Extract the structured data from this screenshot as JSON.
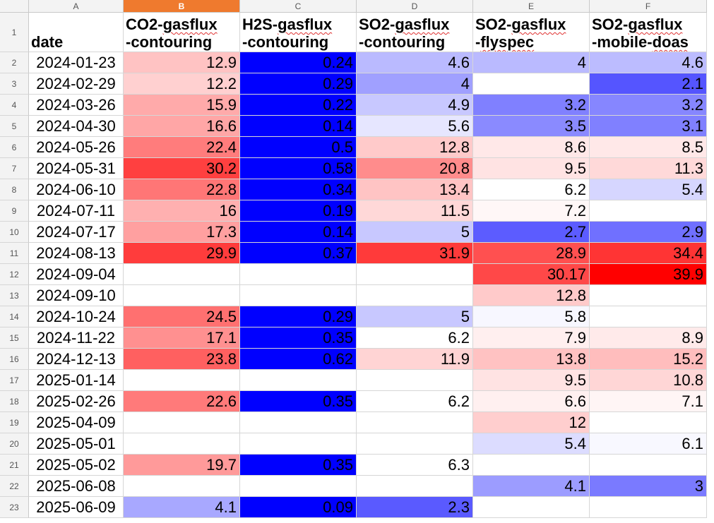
{
  "columns": [
    "A",
    "B",
    "C",
    "D",
    "E",
    "F"
  ],
  "selected_column": "B",
  "row_numbers": [
    "1",
    "2",
    "3",
    "4",
    "5",
    "6",
    "7",
    "8",
    "9",
    "10",
    "11",
    "12",
    "13",
    "14",
    "15",
    "16",
    "17",
    "18",
    "19",
    "20",
    "21",
    "22",
    "23"
  ],
  "header_row": [
    {
      "line1": "",
      "line2": "date"
    },
    {
      "line1": "CO2-gasflux",
      "line2": "-contouring"
    },
    {
      "line1": "H2S-gasflux",
      "line2": "-contouring"
    },
    {
      "line1": "SO2-gasflux",
      "line2": "-contouring"
    },
    {
      "line1": "SO2-gasflux",
      "line2": "-flyspec"
    },
    {
      "line1": "SO2-gasflux",
      "line2": "-mobile-doas"
    }
  ],
  "rows": [
    [
      "2024-01-23",
      "12.9",
      "0.24",
      "4.6",
      "4",
      "4.6"
    ],
    [
      "2024-02-29",
      "12.2",
      "0.29",
      "4",
      "",
      "2.1"
    ],
    [
      "2024-03-26",
      "15.9",
      "0.22",
      "4.9",
      "3.2",
      "3.2"
    ],
    [
      "2024-04-30",
      "16.6",
      "0.14",
      "5.6",
      "3.5",
      "3.1"
    ],
    [
      "2024-05-26",
      "22.4",
      "0.5",
      "12.8",
      "8.6",
      "8.5"
    ],
    [
      "2024-05-31",
      "30.2",
      "0.58",
      "20.8",
      "9.5",
      "11.3"
    ],
    [
      "2024-06-10",
      "22.8",
      "0.34",
      "13.4",
      "6.2",
      "5.4"
    ],
    [
      "2024-07-11",
      "16",
      "0.19",
      "11.5",
      "7.2",
      ""
    ],
    [
      "2024-07-17",
      "17.3",
      "0.14",
      "5",
      "2.7",
      "2.9"
    ],
    [
      "2024-08-13",
      "29.9",
      "0.37",
      "31.9",
      "28.9",
      "34.4"
    ],
    [
      "2024-09-04",
      "",
      "",
      "",
      "30.17",
      "39.9"
    ],
    [
      "2024-09-10",
      "",
      "",
      "",
      "12.8",
      ""
    ],
    [
      "2024-10-24",
      "24.5",
      "0.29",
      "5",
      "5.8",
      ""
    ],
    [
      "2024-11-22",
      "17.1",
      "0.35",
      "6.2",
      "7.9",
      "8.9"
    ],
    [
      "2024-12-13",
      "23.8",
      "0.62",
      "11.9",
      "13.8",
      "15.2"
    ],
    [
      "2025-01-14",
      "",
      "",
      "",
      "9.5",
      "10.8"
    ],
    [
      "2025-02-26",
      "22.6",
      "0.35",
      "6.2",
      "6.6",
      "7.1"
    ],
    [
      "2025-04-09",
      "",
      "",
      "",
      "12",
      ""
    ],
    [
      "2025-05-01",
      "",
      "",
      "",
      "5.4",
      "6.1"
    ],
    [
      "2025-05-02",
      "19.7",
      "0.35",
      "6.3",
      "",
      ""
    ],
    [
      "2025-06-08",
      "",
      "",
      "",
      "4.1",
      "3"
    ],
    [
      "2025-06-09",
      "4.1",
      "0.09",
      "2.3",
      "",
      ""
    ]
  ],
  "fills": [
    [
      null,
      "#ffc3c3",
      "#0000ff",
      "#babaff",
      "#babaff",
      "#bcbcff"
    ],
    [
      null,
      "#ffd0d0",
      "#0000ff",
      "#a0a0ff",
      null,
      "#5555ff"
    ],
    [
      null,
      "#ffaaaa",
      "#0000ff",
      "#c8c8ff",
      "#8080ff",
      "#8686ff"
    ],
    [
      null,
      "#ffa6a6",
      "#0000ff",
      "#e6e6ff",
      "#8a8aff",
      "#8080ff"
    ],
    [
      null,
      "#ff7c7c",
      "#0000ff",
      "#ffcaca",
      "#ffe8e8",
      "#ffe8e8"
    ],
    [
      null,
      "#ff4040",
      "#0000ff",
      "#ff8c8c",
      "#ffe3e3",
      "#ffd9d9"
    ],
    [
      null,
      "#ff7676",
      "#0000ff",
      "#ffc4c4",
      null,
      "#d6d6ff"
    ],
    [
      null,
      "#ffb0b0",
      "#0000ff",
      "#ffd8d8",
      "#fff7f7",
      null
    ],
    [
      null,
      "#ffa0a0",
      "#0000ff",
      "#c8c8ff",
      "#5c5cff",
      "#7070ff"
    ],
    [
      null,
      "#ff3c3c",
      "#0000ff",
      "#ff3a3a",
      "#ff5050",
      "#ff3434"
    ],
    [
      null,
      null,
      null,
      null,
      "#ff4848",
      "#ff0000"
    ],
    [
      null,
      null,
      null,
      null,
      "#ffcaca",
      null
    ],
    [
      null,
      "#ff7070",
      "#0000ff",
      "#c8c8ff",
      "#f7f7ff",
      null
    ],
    [
      null,
      "#ff9090",
      "#0000ff",
      null,
      "#ffefef",
      "#ffeaea"
    ],
    [
      null,
      "#ff6060",
      "#0000ff",
      "#ffd4d4",
      "#ffc2c2",
      "#ffbdbd"
    ],
    [
      null,
      null,
      null,
      null,
      "#ffe3e3",
      "#ffd6d6"
    ],
    [
      null,
      "#ff7a7a",
      "#0000ff",
      null,
      "#fff0f0",
      "#fff5f5"
    ],
    [
      null,
      null,
      null,
      null,
      "#ffcece",
      null
    ],
    [
      null,
      null,
      null,
      null,
      "#dcdcff",
      "#f8f8ff"
    ],
    [
      null,
      "#ff9a9a",
      "#0000ff",
      null,
      null,
      null
    ],
    [
      null,
      null,
      null,
      null,
      "#9c9cff",
      "#7a7aff"
    ],
    [
      null,
      "#a8a8ff",
      "#0000ff",
      "#5a5aff",
      null,
      null
    ]
  ]
}
